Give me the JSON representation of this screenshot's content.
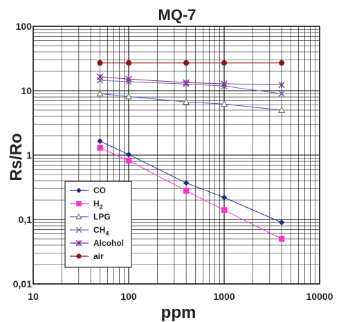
{
  "chart_data": {
    "type": "line",
    "title": "MQ-7",
    "xlabel": "ppm",
    "ylabel": "Rs/Ro",
    "xscale": "log",
    "yscale": "log",
    "xlim": [
      10,
      10000
    ],
    "ylim": [
      0.01,
      100
    ],
    "xticks": [
      "10",
      "100",
      "1000",
      "10000"
    ],
    "yticks": [
      "0,01",
      "0,1",
      "1",
      "10",
      "100"
    ],
    "grid": true,
    "legend": "bottom-left",
    "x": [
      50,
      100,
      400,
      1000,
      4000
    ],
    "series": [
      {
        "name": "CO",
        "label_main": "CO",
        "label_sub": "",
        "color": "#1a2a8a",
        "marker": "diamond",
        "values": [
          1.65,
          1.02,
          0.37,
          0.22,
          0.09
        ]
      },
      {
        "name": "H2",
        "label_main": "H",
        "label_sub": "2",
        "color": "#ff33cc",
        "marker": "square",
        "values": [
          1.3,
          0.82,
          0.28,
          0.14,
          0.05
        ]
      },
      {
        "name": "LPG",
        "label_main": "LPG",
        "label_sub": "",
        "color": "#4455dd",
        "marker": "triangle",
        "values": [
          9.0,
          8.1,
          6.7,
          6.2,
          5.0
        ]
      },
      {
        "name": "CH4",
        "label_main": "CH",
        "label_sub": "4",
        "color": "#6a6ab0",
        "marker": "x",
        "values": [
          14.5,
          13.8,
          12.7,
          11.8,
          9.0
        ]
      },
      {
        "name": "Alcohol",
        "label_main": "Alcohol",
        "label_sub": "",
        "color": "#8a2a8a",
        "marker": "star",
        "values": [
          16.5,
          15.2,
          13.4,
          12.8,
          12.3
        ]
      },
      {
        "name": "air",
        "label_main": "air",
        "label_sub": "",
        "color": "#8b1414",
        "marker": "circle",
        "values": [
          27,
          27,
          27,
          27,
          27
        ]
      }
    ]
  }
}
